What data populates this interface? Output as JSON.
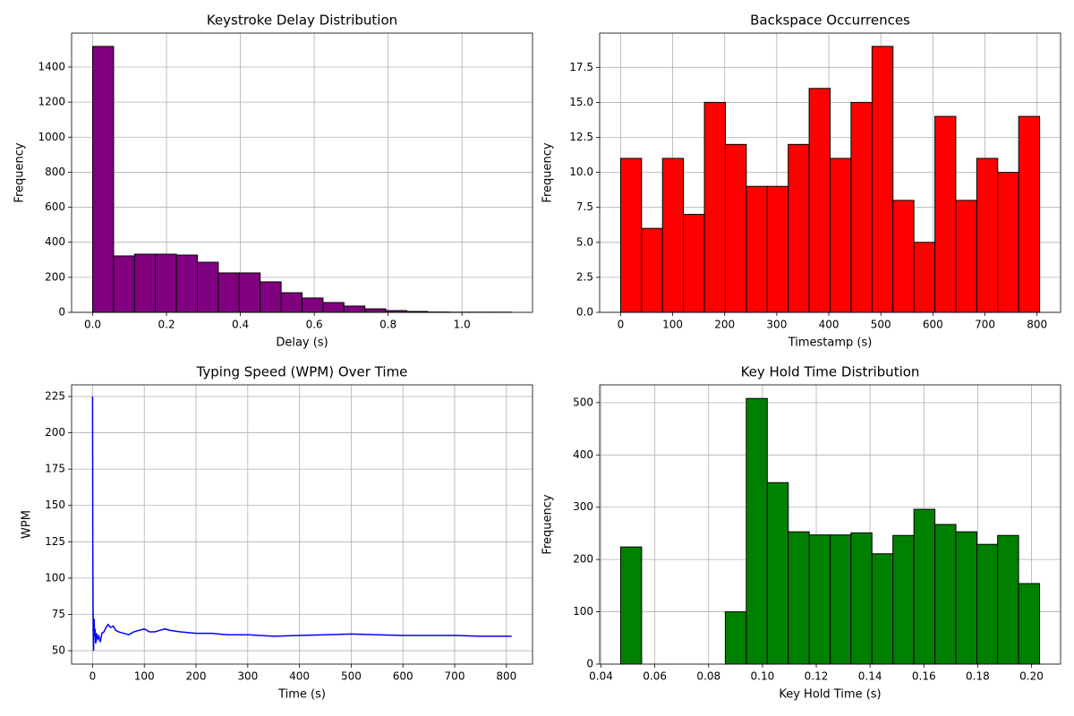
{
  "chart_data": [
    {
      "type": "histogram",
      "title": "Keystroke Delay Distribution",
      "x_label": "Delay (s)",
      "y_label": "Frequency",
      "color": "#800080",
      "edgecolor": "#000000",
      "grid": true,
      "bins": [
        0,
        0.0567,
        0.1134,
        0.1701,
        0.2268,
        0.2835,
        0.3402,
        0.3969,
        0.4536,
        0.5103,
        0.567,
        0.6237,
        0.6804,
        0.7371,
        0.7938,
        0.8505,
        0.9072,
        0.9639,
        1.0206,
        1.0773,
        1.134
      ],
      "values": [
        1518,
        322,
        332,
        332,
        327,
        286,
        225,
        225,
        174,
        112,
        82,
        56,
        36,
        20,
        10,
        5,
        2,
        1,
        1,
        1
      ],
      "xlim": [
        -0.057,
        1.191
      ],
      "ylim": [
        0,
        1594
      ],
      "xticks": [
        {
          "value": 0,
          "label": "0.0"
        },
        {
          "value": 0.2,
          "label": "0.2"
        },
        {
          "value": 0.4,
          "label": "0.4"
        },
        {
          "value": 0.6,
          "label": "0.6"
        },
        {
          "value": 0.8,
          "label": "0.8"
        },
        {
          "value": 1,
          "label": "1.0"
        }
      ],
      "yticks": [
        0,
        200,
        400,
        600,
        800,
        1000,
        1200,
        1400
      ]
    },
    {
      "type": "histogram",
      "title": "Backspace Occurrences",
      "x_label": "Timestamp (s)",
      "y_label": "Frequency",
      "color": "#ff0000",
      "edgecolor": "#000000",
      "grid": true,
      "bins": [
        0,
        40.25,
        80.5,
        120.75,
        161,
        201.25,
        241.5,
        281.75,
        322,
        362.25,
        402.5,
        442.75,
        483,
        523.25,
        563.5,
        603.75,
        644,
        684.25,
        724.5,
        764.75,
        805
      ],
      "values": [
        11,
        6,
        11,
        7,
        15,
        12,
        9,
        9,
        12,
        16,
        11,
        15,
        19,
        8,
        5,
        14,
        8,
        11,
        10,
        14
      ],
      "xlim": [
        -40.25,
        845.25
      ],
      "ylim": [
        0,
        19.95
      ],
      "xticks": [
        0,
        100,
        200,
        300,
        400,
        500,
        600,
        700,
        800
      ],
      "yticks": [
        {
          "value": 0,
          "label": "0.0"
        },
        {
          "value": 2.5,
          "label": "2.5"
        },
        {
          "value": 5,
          "label": "5.0"
        },
        {
          "value": 7.5,
          "label": "7.5"
        },
        {
          "value": 10,
          "label": "10.0"
        },
        {
          "value": 12.5,
          "label": "12.5"
        },
        {
          "value": 15,
          "label": "15.0"
        },
        {
          "value": 17.5,
          "label": "17.5"
        }
      ]
    },
    {
      "type": "line",
      "title": "Typing Speed (WPM) Over Time",
      "x_label": "Time (s)",
      "y_label": "WPM",
      "color": "#0000ff",
      "grid": true,
      "x": [
        0,
        0.5,
        1,
        2,
        3,
        4,
        5,
        6,
        8,
        10,
        12,
        15,
        18,
        22,
        26,
        30,
        35,
        40,
        45,
        50,
        60,
        70,
        80,
        90,
        100,
        110,
        120,
        130,
        140,
        150,
        170,
        200,
        230,
        260,
        300,
        350,
        400,
        450,
        500,
        550,
        600,
        650,
        700,
        750,
        800,
        810
      ],
      "values": [
        225,
        120,
        80,
        50,
        72,
        60,
        65,
        55,
        62,
        58,
        60,
        56,
        62,
        63,
        66,
        68,
        66,
        67,
        64,
        63,
        62,
        61,
        63,
        64,
        65,
        63,
        63,
        64,
        65,
        64,
        63,
        62,
        62,
        61,
        61,
        60,
        60.5,
        61,
        61.5,
        61,
        60.5,
        60.5,
        60.5,
        60,
        60,
        60
      ],
      "xlim": [
        -40.5,
        850.5
      ],
      "ylim": [
        40.8,
        233
      ],
      "xticks": [
        0,
        100,
        200,
        300,
        400,
        500,
        600,
        700,
        800
      ],
      "yticks": [
        50,
        75,
        100,
        125,
        150,
        175,
        200,
        225
      ]
    },
    {
      "type": "histogram",
      "title": "Key Hold Time Distribution",
      "x_label": "Key Hold Time (s)",
      "y_label": "Frequency",
      "color": "#008000",
      "edgecolor": "#000000",
      "grid": true,
      "bins": [
        0.0473,
        0.0551,
        0.0629,
        0.0707,
        0.0784,
        0.0862,
        0.094,
        0.1018,
        0.1096,
        0.1174,
        0.1252,
        0.1329,
        0.1407,
        0.1485,
        0.1563,
        0.1641,
        0.1719,
        0.1797,
        0.1874,
        0.1952,
        0.203
      ],
      "values": [
        224,
        0,
        0,
        0,
        0,
        100,
        508,
        347,
        253,
        247,
        247,
        251,
        211,
        246,
        296,
        267,
        253,
        229,
        246,
        154
      ],
      "xlim": [
        0.0395,
        0.2108
      ],
      "ylim": [
        0,
        534
      ],
      "xticks": [
        {
          "value": 0.04,
          "label": "0.04"
        },
        {
          "value": 0.06,
          "label": "0.06"
        },
        {
          "value": 0.08,
          "label": "0.08"
        },
        {
          "value": 0.1,
          "label": "0.10"
        },
        {
          "value": 0.12,
          "label": "0.12"
        },
        {
          "value": 0.14,
          "label": "0.14"
        },
        {
          "value": 0.16,
          "label": "0.16"
        },
        {
          "value": 0.18,
          "label": "0.18"
        },
        {
          "value": 0.2,
          "label": "0.20"
        }
      ],
      "yticks": [
        0,
        100,
        200,
        300,
        400,
        500
      ]
    }
  ]
}
